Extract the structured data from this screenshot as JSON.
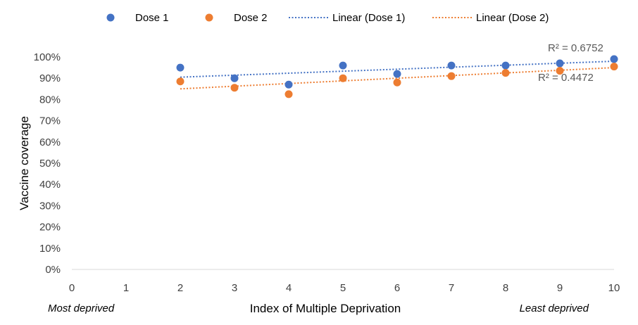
{
  "chart_data": {
    "type": "scatter",
    "xlabel": "Index of Multiple Deprivation",
    "ylabel": "Vaccine coverage",
    "xlim": [
      0,
      10
    ],
    "ylim": [
      0,
      1
    ],
    "x_ticks": [
      "0",
      "1",
      "2",
      "3",
      "4",
      "5",
      "6",
      "7",
      "8",
      "9",
      "10"
    ],
    "y_ticks": [
      "0%",
      "10%",
      "20%",
      "30%",
      "40%",
      "50%",
      "60%",
      "70%",
      "80%",
      "90%",
      "100%"
    ],
    "grid": false,
    "legend_position": "top",
    "x_annotations": {
      "left": "Most deprived",
      "right": "Least  deprived"
    },
    "series": [
      {
        "name": "Dose 1",
        "color": "#4472C4",
        "x": [
          2,
          3,
          4,
          5,
          6,
          7,
          8,
          9,
          10
        ],
        "y": [
          0.95,
          0.9,
          0.87,
          0.96,
          0.92,
          0.96,
          0.96,
          0.97,
          0.99
        ]
      },
      {
        "name": "Dose 2",
        "color": "#ED7D31",
        "x": [
          2,
          3,
          4,
          5,
          6,
          7,
          8,
          9,
          10
        ],
        "y": [
          0.885,
          0.855,
          0.825,
          0.9,
          0.88,
          0.91,
          0.925,
          0.935,
          0.955
        ]
      }
    ],
    "trendlines": [
      {
        "name": "Linear (Dose 1)",
        "color": "#4472C4",
        "start": [
          2,
          0.905
        ],
        "end": [
          10,
          0.98
        ],
        "r2_label": "R² = 0.6752"
      },
      {
        "name": "Linear (Dose 2)",
        "color": "#ED7D31",
        "start": [
          2,
          0.85
        ],
        "end": [
          10,
          0.95
        ],
        "r2_label": "R² = 0.4472"
      }
    ]
  }
}
